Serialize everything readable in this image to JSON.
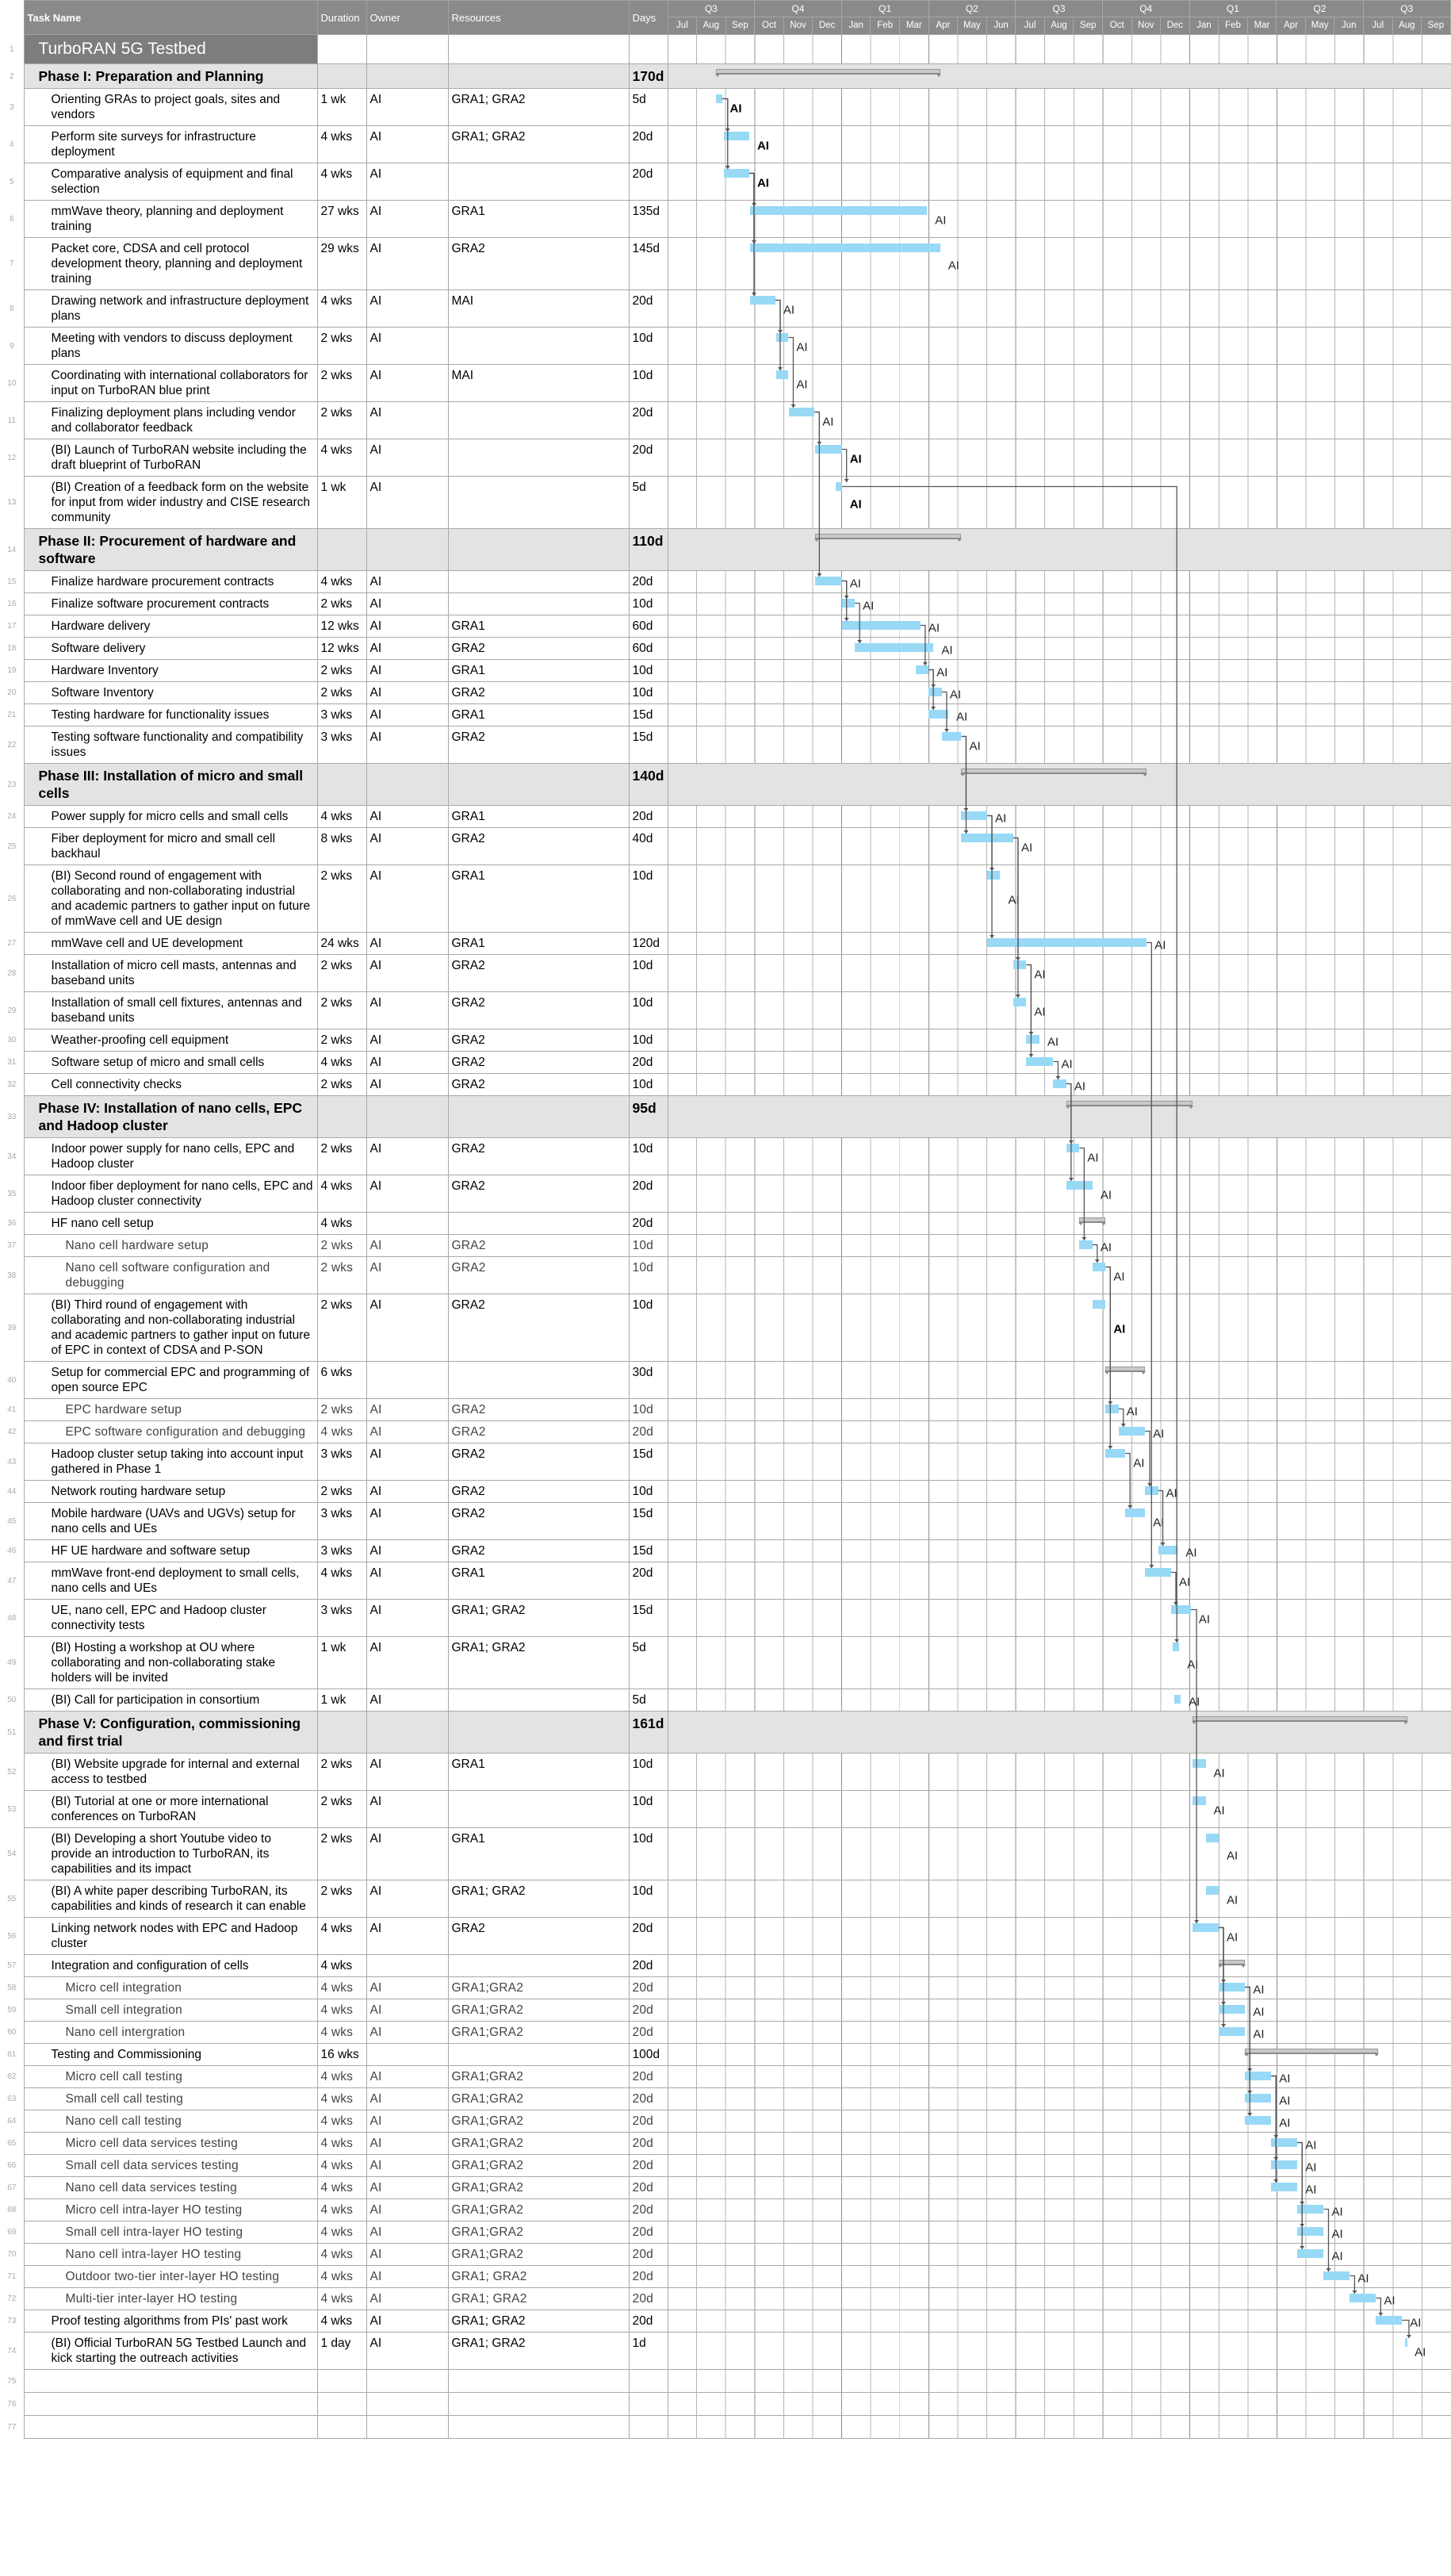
{
  "header": {
    "task_name": "Task Name",
    "duration": "Duration",
    "owner": "Owner",
    "resources": "Resources",
    "days": "Days"
  },
  "timeline": {
    "quarters": [
      "Q3",
      "Q4",
      "Q1",
      "Q2",
      "Q3",
      "Q4",
      "Q1",
      "Q2",
      "Q3"
    ],
    "months": [
      "Jul",
      "Aug",
      "Sep",
      "Oct",
      "Nov",
      "Dec",
      "Jan",
      "Feb",
      "Mar",
      "Apr",
      "May",
      "Jun",
      "Jul",
      "Aug",
      "Sep",
      "Oct",
      "Nov",
      "Dec",
      "Jan",
      "Feb",
      "Mar",
      "Apr",
      "May",
      "Jun",
      "Jul",
      "Aug",
      "Sep"
    ]
  },
  "colors": {
    "task_bar": "#98d9f6",
    "summary_bar": "#c9c9c9",
    "header": "#8a8a8a",
    "phase_row": "#e3e3e3",
    "link": "#555555"
  },
  "chart_data": {
    "type": "gantt",
    "unit": "months from first Jul",
    "range": [
      0,
      27
    ]
  },
  "rows": [
    {
      "n": "1",
      "type": "title",
      "name": "TurboRAN 5G Testbed"
    },
    {
      "n": "2",
      "type": "phase",
      "name": "Phase I: Preparation and Planning",
      "days": "170d",
      "s": 1.64,
      "e": 9.38
    },
    {
      "n": "3",
      "type": "task",
      "name": "Orienting GRAs to project goals, sites and vendors",
      "dur": "1 wk",
      "owner": "AI",
      "res": "GRA1; GRA2",
      "days": "5d",
      "s": 1.64,
      "e": 1.86,
      "lb": true
    },
    {
      "n": "4",
      "type": "task",
      "name": "Perform site surveys for infrastructure deployment",
      "dur": "4 wks",
      "owner": "AI",
      "res": "GRA1; GRA2",
      "days": "20d",
      "s": 1.92,
      "e": 2.8,
      "p": "3",
      "lb": true
    },
    {
      "n": "5",
      "type": "task",
      "name": "Comparative analysis of equipment and final selection",
      "dur": "4 wks",
      "owner": "AI",
      "res": "",
      "days": "20d",
      "s": 1.92,
      "e": 2.8,
      "p": "3",
      "lb": true
    },
    {
      "n": "6",
      "type": "task",
      "name": "mmWave theory, planning and deployment training",
      "dur": "27 wks",
      "owner": "AI",
      "res": "GRA1",
      "days": "135d",
      "s": 2.82,
      "e": 8.93,
      "p": "5"
    },
    {
      "n": "7",
      "type": "task",
      "name": "Packet core, CDSA and cell protocol development theory, planning and deployment training",
      "dur": "29 wks",
      "owner": "AI",
      "res": "GRA2",
      "days": "145d",
      "s": 2.82,
      "e": 9.38,
      "p": "5"
    },
    {
      "n": "8",
      "type": "task",
      "name": "Drawing network and infrastructure deployment plans",
      "dur": "4 wks",
      "owner": "AI",
      "res": "MAI",
      "days": "20d",
      "s": 2.82,
      "e": 3.7,
      "p": "5"
    },
    {
      "n": "9",
      "type": "task",
      "name": "Meeting with vendors to discuss deployment plans",
      "dur": "2 wks",
      "owner": "AI",
      "res": "",
      "days": "10d",
      "s": 3.73,
      "e": 4.15,
      "p": "8"
    },
    {
      "n": "10",
      "type": "task",
      "name": "Coordinating with international collaborators for input on TurboRAN blue print",
      "dur": "2 wks",
      "owner": "AI",
      "res": "MAI",
      "days": "10d",
      "s": 3.73,
      "e": 4.15,
      "p": "8"
    },
    {
      "n": "11",
      "type": "task",
      "name": "Finalizing deployment plans including vendor and collaborator feedback",
      "dur": "2 wks",
      "owner": "AI",
      "res": "",
      "days": "20d",
      "s": 4.18,
      "e": 5.05,
      "p": "9"
    },
    {
      "n": "12",
      "type": "task",
      "name": "(BI) Launch of TurboRAN website including the draft blueprint of TurboRAN",
      "dur": "4 wks",
      "owner": "AI",
      "res": "",
      "days": "20d",
      "s": 5.08,
      "e": 5.99,
      "p": "11",
      "lb": true
    },
    {
      "n": "13",
      "type": "task",
      "name": "(BI) Creation of a feedback form on the website for input from wider industry and CISE research community",
      "dur": "1 wk",
      "owner": "AI",
      "res": "",
      "days": "5d",
      "s": 5.78,
      "e": 5.99,
      "p": "12",
      "lb": true
    },
    {
      "n": "14",
      "type": "phase",
      "name": "Phase II: Procurement of hardware and software",
      "days": "110d",
      "s": 5.08,
      "e": 10.1
    },
    {
      "n": "15",
      "type": "task",
      "name": "Finalize hardware procurement contracts",
      "dur": "4 wks",
      "owner": "AI",
      "res": "",
      "days": "20d",
      "s": 5.08,
      "e": 5.99,
      "p": "11"
    },
    {
      "n": "16",
      "type": "task",
      "name": "Finalize software procurement contracts",
      "dur": "2 wks",
      "owner": "AI",
      "res": "",
      "days": "10d",
      "s": 5.99,
      "e": 6.44,
      "p": "15"
    },
    {
      "n": "17",
      "type": "task",
      "name": "Hardware delivery",
      "dur": "12 wks",
      "owner": "AI",
      "res": "GRA1",
      "days": "60d",
      "s": 5.99,
      "e": 8.7,
      "p": "15"
    },
    {
      "n": "18",
      "type": "task",
      "name": "Software delivery",
      "dur": "12 wks",
      "owner": "AI",
      "res": "GRA2",
      "days": "60d",
      "s": 6.44,
      "e": 9.15,
      "p": "16"
    },
    {
      "n": "19",
      "type": "task",
      "name": "Hardware Inventory",
      "dur": "2 wks",
      "owner": "AI",
      "res": "GRA1",
      "days": "10d",
      "s": 8.53,
      "e": 8.98,
      "p": "17"
    },
    {
      "n": "20",
      "type": "task",
      "name": "Software Inventory",
      "dur": "2 wks",
      "owner": "AI",
      "res": "GRA2",
      "days": "10d",
      "s": 8.98,
      "e": 9.44,
      "p": "19"
    },
    {
      "n": "21",
      "type": "task",
      "name": "Testing hardware for functionality issues",
      "dur": "3 wks",
      "owner": "AI",
      "res": "GRA1",
      "days": "15d",
      "s": 8.98,
      "e": 9.66,
      "p": "19"
    },
    {
      "n": "22",
      "type": "task",
      "name": "Testing software functionality and compatibility issues",
      "dur": "3 wks",
      "owner": "AI",
      "res": "GRA2",
      "days": "15d",
      "s": 9.44,
      "e": 10.11,
      "p": "20"
    },
    {
      "n": "23",
      "type": "phase",
      "name": "Phase III: Installation of micro and small cells",
      "days": "140d",
      "s": 10.11,
      "e": 16.5
    },
    {
      "n": "24",
      "type": "task",
      "name": "Power supply for micro cells and small cells",
      "dur": "4 wks",
      "owner": "AI",
      "res": "GRA1",
      "days": "20d",
      "s": 10.11,
      "e": 11.0,
      "p": "22"
    },
    {
      "n": "25",
      "type": "task",
      "name": "Fiber deployment for micro and small cell backhaul",
      "dur": "8 wks",
      "owner": "AI",
      "res": "GRA2",
      "days": "40d",
      "s": 10.11,
      "e": 11.9,
      "p": "22"
    },
    {
      "n": "26",
      "type": "task",
      "name": "(BI) Second round of engagement with collaborating and non-collaborating industrial and academic partners to gather input on future of mmWave cell and UE design",
      "dur": "2 wks",
      "owner": "AI",
      "res": "GRA1",
      "days": "10d",
      "s": 11.0,
      "e": 11.45,
      "p": "24"
    },
    {
      "n": "27",
      "type": "task",
      "name": "mmWave cell and UE development",
      "dur": "24 wks",
      "owner": "AI",
      "res": "GRA1",
      "days": "120d",
      "s": 11.0,
      "e": 16.5,
      "p": "24"
    },
    {
      "n": "28",
      "type": "task",
      "name": "Installation of micro cell masts, antennas and baseband units",
      "dur": "2 wks",
      "owner": "AI",
      "res": "GRA2",
      "days": "10d",
      "s": 11.9,
      "e": 12.35,
      "p": "25"
    },
    {
      "n": "29",
      "type": "task",
      "name": "Installation of small cell fixtures, antennas and baseband units",
      "dur": "2 wks",
      "owner": "AI",
      "res": "GRA2",
      "days": "10d",
      "s": 11.9,
      "e": 12.35,
      "p": "25"
    },
    {
      "n": "30",
      "type": "task",
      "name": "Weather-proofing cell equipment",
      "dur": "2 wks",
      "owner": "AI",
      "res": "GRA2",
      "days": "10d",
      "s": 12.35,
      "e": 12.8,
      "p": "28"
    },
    {
      "n": "31",
      "type": "task",
      "name": "Software setup of micro and small cells",
      "dur": "4 wks",
      "owner": "AI",
      "res": "GRA2",
      "days": "20d",
      "s": 12.35,
      "e": 13.28,
      "p": "28"
    },
    {
      "n": "32",
      "type": "task",
      "name": "Cell connectivity checks",
      "dur": "2 wks",
      "owner": "AI",
      "res": "GRA2",
      "days": "10d",
      "s": 13.28,
      "e": 13.73,
      "p": "31"
    },
    {
      "n": "33",
      "type": "phase",
      "name": "Phase IV: Installation of nano cells, EPC and Hadoop cluster",
      "days": "95d",
      "s": 13.73,
      "e": 18.08
    },
    {
      "n": "34",
      "type": "task",
      "name": "Indoor power supply for nano cells, EPC and Hadoop cluster",
      "dur": "2 wks",
      "owner": "AI",
      "res": "GRA2",
      "days": "10d",
      "s": 13.73,
      "e": 14.18,
      "p": "32"
    },
    {
      "n": "35",
      "type": "task",
      "name": "Indoor fiber deployment for nano cells, EPC and Hadoop cluster connectivity",
      "dur": "4 wks",
      "owner": "AI",
      "res": "GRA2",
      "days": "20d",
      "s": 13.73,
      "e": 14.63,
      "p": "32"
    },
    {
      "n": "36",
      "type": "summary",
      "name": "HF nano cell setup",
      "dur": "4 wks",
      "owner": "",
      "res": "",
      "days": "20d",
      "s": 14.18,
      "e": 15.08
    },
    {
      "n": "37",
      "type": "sub",
      "name": "Nano cell hardware setup",
      "dur": "2 wks",
      "owner": "AI",
      "res": "GRA2",
      "days": "10d",
      "s": 14.18,
      "e": 14.63,
      "p": "34"
    },
    {
      "n": "38",
      "type": "sub",
      "name": "Nano cell software configuration and debugging",
      "dur": "2 wks",
      "owner": "AI",
      "res": "GRA2",
      "days": "10d",
      "s": 14.63,
      "e": 15.08,
      "p": "37"
    },
    {
      "n": "39",
      "type": "task",
      "name": "(BI) Third round of engagement with collaborating and non-collaborating industrial and academic partners to gather input on future of EPC in context of CDSA and P-SON",
      "dur": "2 wks",
      "owner": "AI",
      "res": "GRA2",
      "days": "10d",
      "s": 14.63,
      "e": 15.08,
      "lb": true
    },
    {
      "n": "40",
      "type": "summary",
      "name": "Setup for commercial EPC and programming of open source EPC",
      "dur": "6 wks",
      "owner": "",
      "res": "",
      "days": "30d",
      "s": 15.08,
      "e": 16.44
    },
    {
      "n": "41",
      "type": "sub",
      "name": "EPC hardware setup",
      "dur": "2 wks",
      "owner": "AI",
      "res": "GRA2",
      "days": "10d",
      "s": 15.08,
      "e": 15.53,
      "p": "38"
    },
    {
      "n": "42",
      "type": "sub",
      "name": "EPC software configuration and debugging",
      "dur": "4 wks",
      "owner": "AI",
      "res": "GRA2",
      "days": "20d",
      "s": 15.53,
      "e": 16.44,
      "p": "41"
    },
    {
      "n": "43",
      "type": "task",
      "name": "Hadoop cluster setup taking into account input gathered in Phase 1",
      "dur": "3 wks",
      "owner": "AI",
      "res": "GRA2",
      "days": "15d",
      "s": 15.08,
      "e": 15.76,
      "p": "38"
    },
    {
      "n": "44",
      "type": "task",
      "name": "Network routing hardware setup",
      "dur": "2 wks",
      "owner": "AI",
      "res": "GRA2",
      "days": "10d",
      "s": 16.44,
      "e": 16.89,
      "p": "42"
    },
    {
      "n": "45",
      "type": "task",
      "name": "Mobile hardware (UAVs and UGVs) setup for nano cells and UEs",
      "dur": "3 wks",
      "owner": "AI",
      "res": "GRA2",
      "days": "15d",
      "s": 15.76,
      "e": 16.44,
      "p": "43"
    },
    {
      "n": "46",
      "type": "task",
      "name": "HF UE hardware and software setup",
      "dur": "3 wks",
      "owner": "AI",
      "res": "GRA2",
      "days": "15d",
      "s": 16.89,
      "e": 17.57,
      "p": "44"
    },
    {
      "n": "47",
      "type": "task",
      "name": "mmWave front-end deployment to small cells, nano cells and UEs",
      "dur": "4 wks",
      "owner": "AI",
      "res": "GRA1",
      "days": "20d",
      "s": 16.44,
      "e": 17.34,
      "p": "27"
    },
    {
      "n": "48",
      "type": "task",
      "name": "UE, nano cell, EPC and Hadoop cluster connectivity tests",
      "dur": "3 wks",
      "owner": "AI",
      "res": "GRA1; GRA2",
      "days": "15d",
      "s": 17.34,
      "e": 18.02,
      "p": "47"
    },
    {
      "n": "49",
      "type": "task",
      "name": "(BI) Hosting a workshop at OU where collaborating and non-collaborating stake holders will be invited",
      "dur": "1 wk",
      "owner": "AI",
      "res": "GRA1; GRA2",
      "days": "5d",
      "s": 17.4,
      "e": 17.62,
      "p": "13"
    },
    {
      "n": "50",
      "type": "task",
      "name": "(BI) Call for participation in consortium",
      "dur": "1 wk",
      "owner": "AI",
      "res": "",
      "days": "5d",
      "s": 17.45,
      "e": 17.67
    },
    {
      "n": "51",
      "type": "phase",
      "name": "Phase V: Configuration, commissioning and first trial",
      "days": "161d",
      "s": 18.08,
      "e": 25.48
    },
    {
      "n": "52",
      "type": "task",
      "name": "(BI) Website upgrade for internal and external access to testbed",
      "dur": "2 wks",
      "owner": "AI",
      "res": "GRA1",
      "days": "10d",
      "s": 18.08,
      "e": 18.53
    },
    {
      "n": "53",
      "type": "task",
      "name": "(BI) Tutorial at one or more international conferences on TurboRAN",
      "dur": "2 wks",
      "owner": "AI",
      "res": "",
      "days": "10d",
      "s": 18.08,
      "e": 18.53
    },
    {
      "n": "54",
      "type": "task",
      "name": "(BI) Developing a short Youtube video to provide an introduction to TurboRAN, its capabilities and its impact",
      "dur": "2 wks",
      "owner": "AI",
      "res": "GRA1",
      "days": "10d",
      "s": 18.53,
      "e": 18.98
    },
    {
      "n": "55",
      "type": "task",
      "name": "(BI) A white paper describing TurboRAN, its capabilities and kinds of research it can enable",
      "dur": "2 wks",
      "owner": "AI",
      "res": "GRA1; GRA2",
      "days": "10d",
      "s": 18.53,
      "e": 18.98
    },
    {
      "n": "56",
      "type": "task",
      "name": "Linking network nodes with EPC and Hadoop cluster",
      "dur": "4 wks",
      "owner": "AI",
      "res": "GRA2",
      "days": "20d",
      "s": 18.08,
      "e": 18.98,
      "p": "48"
    },
    {
      "n": "57",
      "type": "summary",
      "name": "Integration and configuration of cells",
      "dur": "4 wks",
      "owner": "",
      "res": "",
      "days": "20d",
      "s": 18.98,
      "e": 19.89
    },
    {
      "n": "58",
      "type": "sub",
      "name": "Micro cell integration",
      "dur": "4 wks",
      "owner": "AI",
      "res": "GRA1;GRA2",
      "days": "20d",
      "db": true,
      "s": 18.98,
      "e": 19.89,
      "p": "56"
    },
    {
      "n": "59",
      "type": "sub",
      "name": "Small cell integration",
      "dur": "4 wks",
      "owner": "AI",
      "res": "GRA1;GRA2",
      "days": "20d",
      "db": true,
      "s": 18.98,
      "e": 19.89,
      "p": "56"
    },
    {
      "n": "60",
      "type": "sub",
      "name": "Nano cell intergration",
      "dur": "4 wks",
      "owner": "AI",
      "res": "GRA1;GRA2",
      "days": "20d",
      "db": true,
      "s": 18.98,
      "e": 19.89,
      "p": "56"
    },
    {
      "n": "61",
      "type": "summary",
      "name": "Testing and Commissioning",
      "dur": "16 wks",
      "owner": "",
      "res": "",
      "days": "100d",
      "s": 19.89,
      "e": 24.46
    },
    {
      "n": "62",
      "type": "sub",
      "name": "Micro cell call testing",
      "dur": "4 wks",
      "owner": "AI",
      "res": "GRA1;GRA2",
      "days": "20d",
      "db": true,
      "s": 19.89,
      "e": 20.79,
      "p": "58"
    },
    {
      "n": "63",
      "type": "sub",
      "name": "Small cell call testing",
      "dur": "4 wks",
      "owner": "AI",
      "res": "GRA1;GRA2",
      "days": "20d",
      "db": true,
      "s": 19.89,
      "e": 20.79,
      "p": "58"
    },
    {
      "n": "64",
      "type": "sub",
      "name": "Nano cell call testing",
      "dur": "4 wks",
      "owner": "AI",
      "res": "GRA1;GRA2",
      "days": "20d",
      "db": true,
      "s": 19.89,
      "e": 20.79,
      "p": "58"
    },
    {
      "n": "65",
      "type": "sub",
      "name": "Micro cell data services testing",
      "dur": "4 wks",
      "owner": "AI",
      "res": "GRA1;GRA2",
      "days": "20d",
      "db": true,
      "s": 20.79,
      "e": 21.69,
      "p": "62"
    },
    {
      "n": "66",
      "type": "sub",
      "name": "Small cell data services testing",
      "dur": "4 wks",
      "owner": "AI",
      "res": "GRA1;GRA2",
      "days": "20d",
      "db": true,
      "s": 20.79,
      "e": 21.69,
      "p": "62"
    },
    {
      "n": "67",
      "type": "sub",
      "name": "Nano cell data services testing",
      "dur": "4 wks",
      "owner": "AI",
      "res": "GRA1;GRA2",
      "days": "20d",
      "db": true,
      "s": 20.79,
      "e": 21.69,
      "p": "62"
    },
    {
      "n": "68",
      "type": "sub",
      "name": "Micro cell intra-layer HO testing",
      "dur": "4 wks",
      "owner": "AI",
      "res": "GRA1;GRA2",
      "days": "20d",
      "db": true,
      "s": 21.69,
      "e": 22.6,
      "p": "65"
    },
    {
      "n": "69",
      "type": "sub",
      "name": "Small cell intra-layer HO testing",
      "dur": "4 wks",
      "owner": "AI",
      "res": "GRA1;GRA2",
      "days": "20d",
      "db": true,
      "s": 21.69,
      "e": 22.6,
      "p": "65"
    },
    {
      "n": "70",
      "type": "sub",
      "name": "Nano cell intra-layer HO testing",
      "dur": "4 wks",
      "owner": "AI",
      "res": "GRA1;GRA2",
      "days": "20d",
      "db": true,
      "s": 21.69,
      "e": 22.6,
      "p": "65"
    },
    {
      "n": "71",
      "type": "sub",
      "name": "Outdoor two-tier inter-layer HO testing",
      "dur": "4 wks",
      "owner": "AI",
      "res": "GRA1; GRA2",
      "days": "20d",
      "s": 22.6,
      "e": 23.5,
      "p": "68"
    },
    {
      "n": "72",
      "type": "sub",
      "name": "Multi-tier inter-layer HO testing",
      "dur": "4 wks",
      "owner": "AI",
      "res": "GRA1; GRA2",
      "days": "20d",
      "s": 23.5,
      "e": 24.4,
      "p": "71"
    },
    {
      "n": "73",
      "type": "task",
      "name": "Proof testing algorithms from PIs' past work",
      "dur": "4 wks",
      "owner": "AI",
      "res": "GRA1; GRA2",
      "days": "20d",
      "s": 24.4,
      "e": 25.3,
      "p": "72"
    },
    {
      "n": "74",
      "type": "task",
      "name": "(BI) Official TurboRAN 5G Testbed Launch and kick starting the outreach activities",
      "dur": "1 day",
      "owner": "AI",
      "res": "GRA1; GRA2",
      "days": "1d",
      "s": 25.4,
      "e": 25.46,
      "p": "73"
    },
    {
      "n": "75",
      "type": "empty"
    },
    {
      "n": "76",
      "type": "empty"
    },
    {
      "n": "77",
      "type": "empty"
    }
  ]
}
